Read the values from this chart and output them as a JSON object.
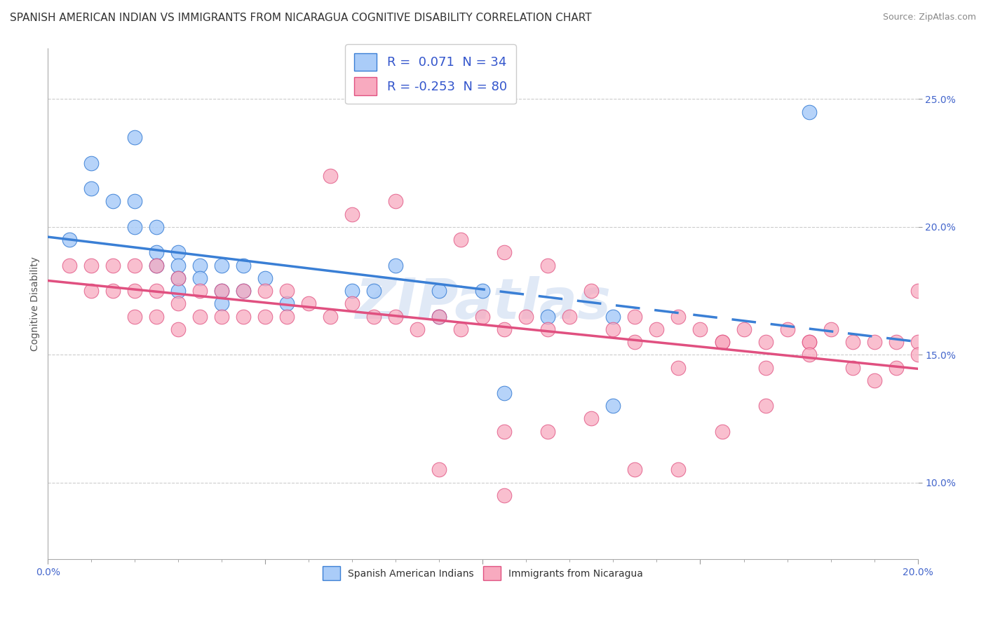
{
  "title": "SPANISH AMERICAN INDIAN VS IMMIGRANTS FROM NICARAGUA COGNITIVE DISABILITY CORRELATION CHART",
  "source": "Source: ZipAtlas.com",
  "ylabel": "Cognitive Disability",
  "xlim": [
    0.0,
    0.2
  ],
  "ylim": [
    0.07,
    0.27
  ],
  "ytick_labels": [
    "10.0%",
    "15.0%",
    "20.0%",
    "25.0%"
  ],
  "ytick_values": [
    0.1,
    0.15,
    0.2,
    0.25
  ],
  "xtick_labels": [
    "0.0%",
    "",
    "",
    "",
    "",
    "5.0%",
    "",
    "",
    "",
    "",
    "10.0%",
    "",
    "",
    "",
    "",
    "15.0%",
    "",
    "",
    "",
    "",
    "20.0%"
  ],
  "xtick_values": [
    0.0,
    0.01,
    0.02,
    0.03,
    0.04,
    0.05,
    0.06,
    0.07,
    0.08,
    0.09,
    0.1,
    0.11,
    0.12,
    0.13,
    0.14,
    0.15,
    0.16,
    0.17,
    0.18,
    0.19,
    0.2
  ],
  "legend1_label": "R =  0.071  N = 34",
  "legend2_label": "R = -0.253  N = 80",
  "series1_color": "#aaccf8",
  "series2_color": "#f8aabf",
  "line1_color": "#3a7fd5",
  "line2_color": "#e05080",
  "watermark": "ZIPatlas",
  "background_color": "#ffffff",
  "grid_color": "#cccccc",
  "title_fontsize": 11,
  "axis_label_fontsize": 10,
  "tick_fontsize": 10,
  "tick_color": "#4466cc",
  "legend_color": "#3355cc",
  "blue_x": [
    0.005,
    0.01,
    0.01,
    0.015,
    0.02,
    0.02,
    0.02,
    0.025,
    0.025,
    0.025,
    0.03,
    0.03,
    0.03,
    0.03,
    0.035,
    0.035,
    0.04,
    0.04,
    0.04,
    0.045,
    0.045,
    0.05,
    0.055,
    0.07,
    0.075,
    0.08,
    0.09,
    0.09,
    0.1,
    0.105,
    0.115,
    0.13,
    0.13,
    0.175
  ],
  "blue_y": [
    0.195,
    0.225,
    0.215,
    0.21,
    0.235,
    0.21,
    0.2,
    0.2,
    0.19,
    0.185,
    0.19,
    0.185,
    0.18,
    0.175,
    0.185,
    0.18,
    0.185,
    0.175,
    0.17,
    0.185,
    0.175,
    0.18,
    0.17,
    0.175,
    0.175,
    0.185,
    0.175,
    0.165,
    0.175,
    0.135,
    0.165,
    0.165,
    0.13,
    0.245
  ],
  "pink_x": [
    0.005,
    0.01,
    0.01,
    0.015,
    0.015,
    0.02,
    0.02,
    0.02,
    0.025,
    0.025,
    0.025,
    0.03,
    0.03,
    0.03,
    0.035,
    0.035,
    0.04,
    0.04,
    0.045,
    0.045,
    0.05,
    0.05,
    0.055,
    0.055,
    0.06,
    0.065,
    0.07,
    0.075,
    0.08,
    0.085,
    0.09,
    0.095,
    0.1,
    0.105,
    0.11,
    0.115,
    0.12,
    0.13,
    0.135,
    0.14,
    0.145,
    0.15,
    0.155,
    0.16,
    0.165,
    0.17,
    0.175,
    0.18,
    0.185,
    0.19,
    0.195,
    0.2,
    0.2,
    0.205,
    0.065,
    0.07,
    0.08,
    0.095,
    0.105,
    0.115,
    0.125,
    0.135,
    0.145,
    0.155,
    0.165,
    0.175,
    0.185,
    0.195,
    0.2,
    0.105,
    0.09,
    0.105,
    0.115,
    0.125,
    0.135,
    0.145,
    0.155,
    0.165,
    0.175,
    0.19
  ],
  "pink_y": [
    0.185,
    0.185,
    0.175,
    0.185,
    0.175,
    0.185,
    0.175,
    0.165,
    0.185,
    0.175,
    0.165,
    0.18,
    0.17,
    0.16,
    0.175,
    0.165,
    0.175,
    0.165,
    0.175,
    0.165,
    0.175,
    0.165,
    0.175,
    0.165,
    0.17,
    0.165,
    0.17,
    0.165,
    0.165,
    0.16,
    0.165,
    0.16,
    0.165,
    0.16,
    0.165,
    0.16,
    0.165,
    0.16,
    0.165,
    0.16,
    0.165,
    0.16,
    0.155,
    0.16,
    0.155,
    0.16,
    0.155,
    0.16,
    0.155,
    0.155,
    0.155,
    0.175,
    0.155,
    0.15,
    0.22,
    0.205,
    0.21,
    0.195,
    0.19,
    0.185,
    0.175,
    0.155,
    0.145,
    0.155,
    0.145,
    0.155,
    0.145,
    0.145,
    0.15,
    0.095,
    0.105,
    0.12,
    0.12,
    0.125,
    0.105,
    0.105,
    0.12,
    0.13,
    0.15,
    0.14
  ]
}
